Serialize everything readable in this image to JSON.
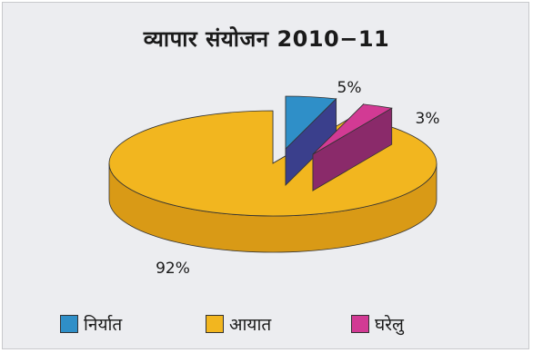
{
  "chart_data": {
    "type": "pie",
    "title": "व्यापार संयोजन 2010−11",
    "categories": [
      "निर्यात",
      "आयात",
      "घरेलु"
    ],
    "values": [
      5,
      92,
      3
    ],
    "labels": [
      "5%",
      "92%",
      "3%"
    ],
    "colors": [
      "#2f8fc8",
      "#f2b61f",
      "#d23a94"
    ],
    "side_colors": [
      "#3a3f8c",
      "#d99a16",
      "#8a2a6a"
    ],
    "legend_position": "bottom"
  }
}
